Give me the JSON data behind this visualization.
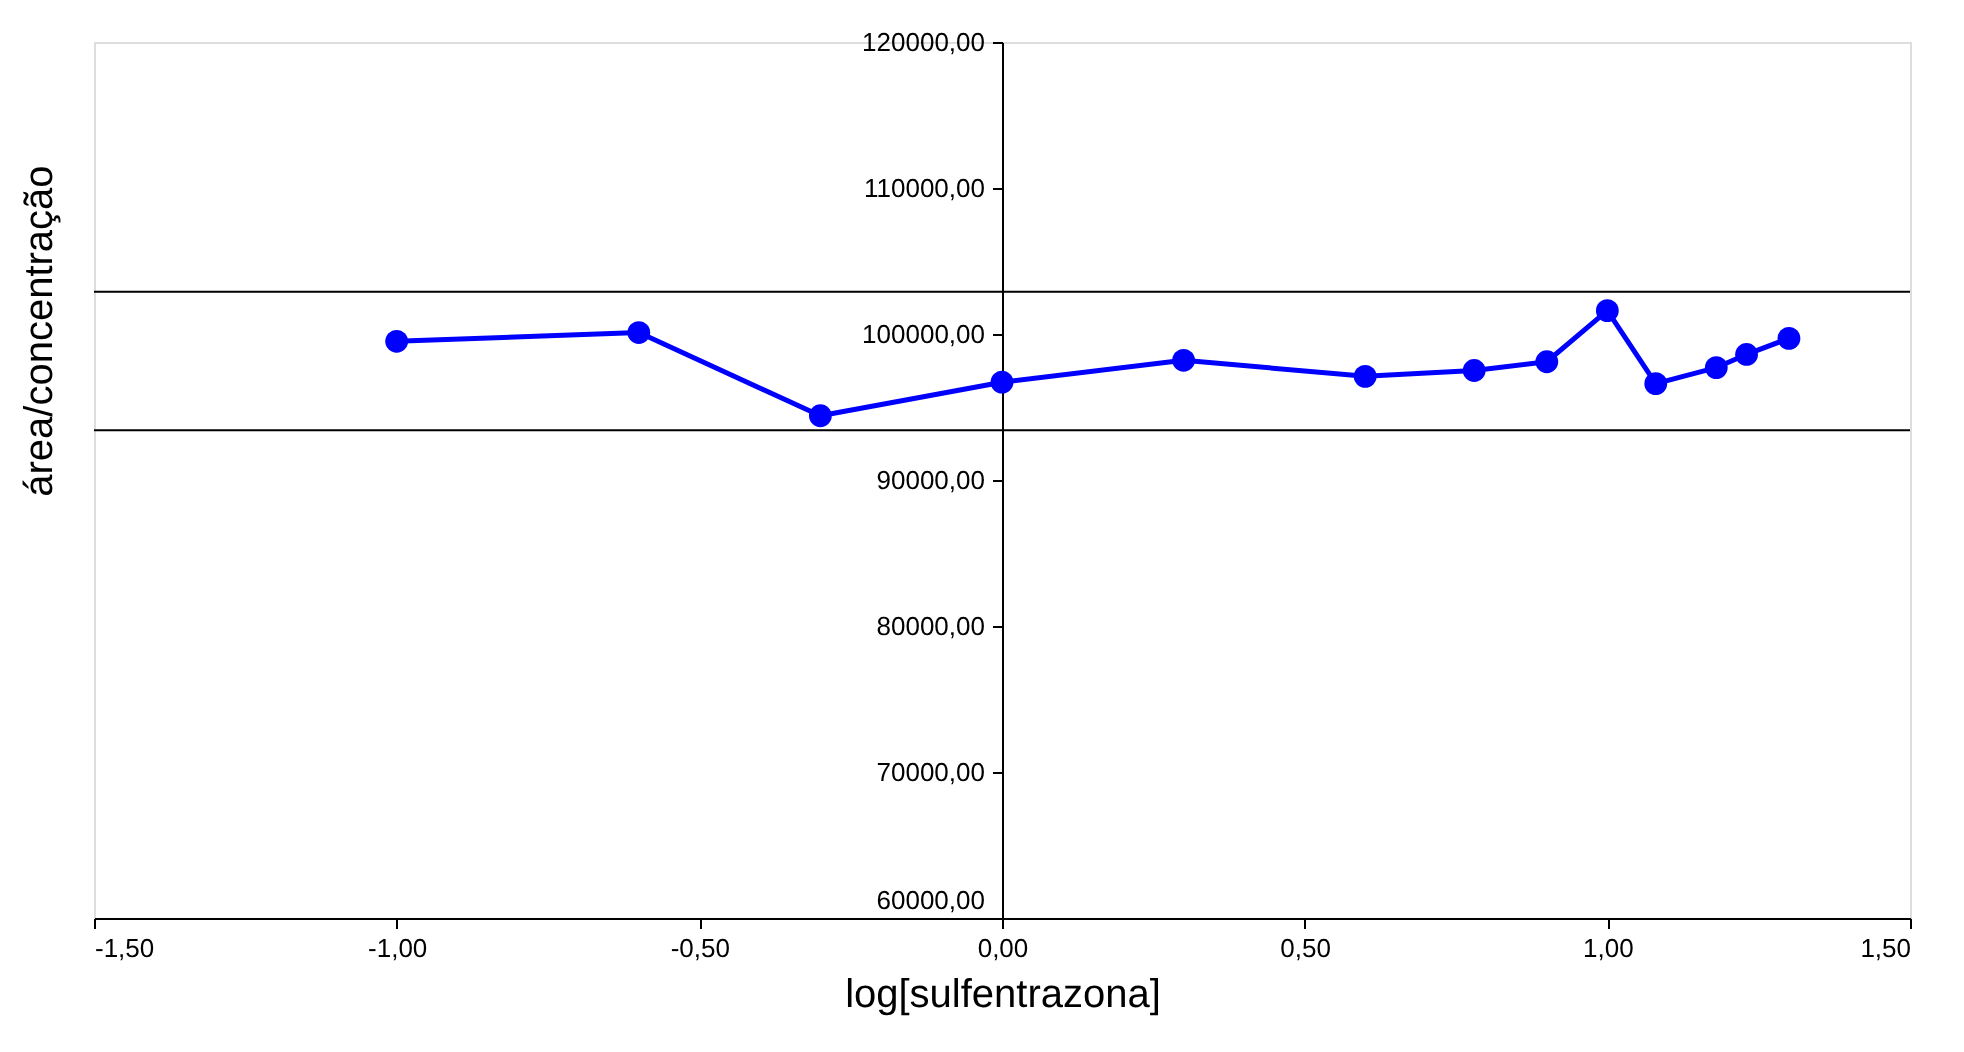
{
  "chart_data": {
    "type": "line",
    "xlabel": "log[sulfentrazona]",
    "ylabel": "área/concentração",
    "x": [
      -1.0,
      -0.6,
      -0.3,
      0.0,
      0.3,
      0.6,
      0.78,
      0.9,
      1.0,
      1.08,
      1.18,
      1.23,
      1.3
    ],
    "series": [
      {
        "color": "#0000ff",
        "values": [
          99500,
          100100,
          94400,
          96700,
          98200,
          97100,
          97500,
          98100,
          101600,
          96600,
          97700,
          98600,
          99700
        ]
      }
    ],
    "xlim": [
      -1.5,
      1.5
    ],
    "ylim": [
      60000,
      120000
    ],
    "xticks": [
      {
        "value": -1.5,
        "label": "-1,50"
      },
      {
        "value": -1.0,
        "label": "-1,00"
      },
      {
        "value": -0.5,
        "label": "-0,50"
      },
      {
        "value": 0,
        "label": "0,00"
      },
      {
        "value": 0.5,
        "label": "0,50"
      },
      {
        "value": 1.0,
        "label": "1,00"
      },
      {
        "value": 1.5,
        "label": "1,50"
      }
    ],
    "yticks": [
      {
        "value": 60000,
        "label": "60000,00"
      },
      {
        "value": 70000,
        "label": "70000,00"
      },
      {
        "value": 80000,
        "label": "80000,00"
      },
      {
        "value": 90000,
        "label": "90000,00"
      },
      {
        "value": 100000,
        "label": "100000,00"
      },
      {
        "value": 110000,
        "label": "110000,00"
      },
      {
        "value": 120000,
        "label": "120000,00"
      }
    ],
    "ref_lines": [
      {
        "axis": "y",
        "value": 102900,
        "color": "#000000"
      },
      {
        "axis": "y",
        "value": 93400,
        "color": "#000000"
      }
    ],
    "marker": "circle",
    "line_style": "solid",
    "grid": false
  }
}
